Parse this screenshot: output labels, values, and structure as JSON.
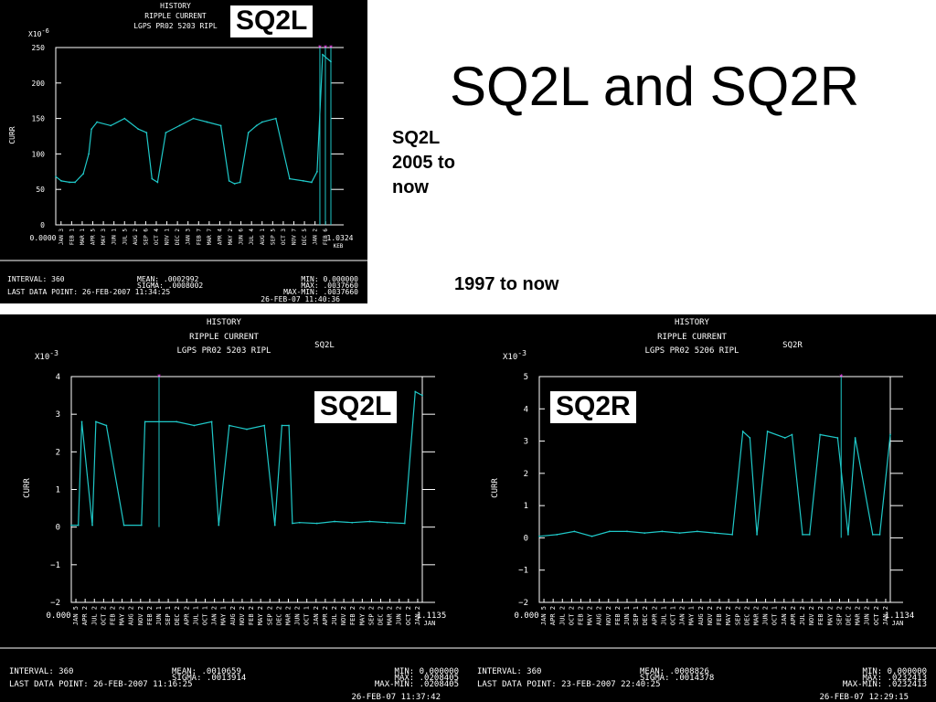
{
  "slide": {
    "title": "SQ2L and SQ2R",
    "note_sq2l_range": "SQ2L\n2005 to\nnow",
    "note_long_range": "1997 to now"
  },
  "colors": {
    "trace": "#1fc8c8",
    "axes": "#ffffff",
    "marker": "#ff44ff",
    "background": "#000000"
  },
  "chart_data": [
    {
      "id": "top",
      "type": "line",
      "overlay_label": "SQ2L",
      "header_lines": [
        "HISTORY",
        "RIPPLE CURRENT",
        "LGPS PR02    5203 RIPL"
      ],
      "right_label": "SQ2L",
      "exponent_base": "X10",
      "exponent": "-6",
      "ylabel": "CURR",
      "ylim": [
        0,
        250
      ],
      "yticks": [
        "0",
        "50",
        "100",
        "150",
        "200",
        "250"
      ],
      "x_start_label": "0.0000",
      "x_end_label": "1.0324",
      "x_end_sub": "KEB",
      "xticks": [
        "JAN 3",
        "FEB 1",
        "MAR 1",
        "APR 5",
        "MAY 3",
        "JUN 1",
        "JUL 5",
        "AUG 2",
        "SEP 6",
        "OCT 4",
        "NOV 1",
        "DEC 2",
        "JAN 3",
        "FEB 7",
        "MAR 7",
        "APR 4",
        "MAY 2",
        "JUN 6",
        "JUL 4",
        "AUG 1",
        "SEP 5",
        "OCT 3",
        "NOV 7",
        "DEC 5",
        "JAN 2",
        "FEB 6"
      ],
      "series_x": [
        0,
        0.02,
        0.05,
        0.07,
        0.1,
        0.12,
        0.13,
        0.15,
        0.2,
        0.25,
        0.3,
        0.33,
        0.35,
        0.37,
        0.4,
        0.45,
        0.5,
        0.55,
        0.6,
        0.63,
        0.65,
        0.67,
        0.7,
        0.73,
        0.75,
        0.8,
        0.85,
        0.9,
        0.93,
        0.95,
        0.97,
        1.0
      ],
      "series_y": [
        68,
        62,
        60,
        60,
        72,
        100,
        135,
        145,
        140,
        150,
        135,
        130,
        65,
        60,
        130,
        140,
        150,
        145,
        140,
        62,
        58,
        60,
        130,
        140,
        145,
        150,
        65,
        62,
        60,
        75,
        240,
        230
      ],
      "marker_positions": [
        0.96,
        0.98,
        1.0
      ],
      "marker_value": 250,
      "interval_text": "INTERVAL:  360",
      "last_point_text": "LAST DATA POINT:  26-FEB-2007 11:34:25",
      "mean_text": "MEAN: .0002992",
      "sigma_text": "SIGMA: .0008002",
      "min_text": "MIN: 0.000000",
      "max_text": "MAX: .0037660",
      "maxmin_text": "MAX-MIN: .0037660",
      "printed_text": "26-FEB-07 11:40:36"
    },
    {
      "id": "bottom-left",
      "type": "line",
      "overlay_label": "SQ2L",
      "header_lines": [
        "HISTORY",
        "RIPPLE CURRENT",
        "LGPS PR02    5203 RIPL"
      ],
      "right_label": "SQ2L",
      "exponent_base": "X10",
      "exponent": "-3",
      "ylabel": "CURR",
      "ylim": [
        -2,
        4
      ],
      "yticks": [
        "−2",
        "−1",
        "0",
        "1",
        "2",
        "3",
        "4"
      ],
      "x_start_label": "0.000",
      "x_end_label": "1.1135",
      "x_end_sub": "JAN",
      "xticks": [
        "JAN 5",
        "APR 2",
        "JUL 2",
        "OCT 2",
        "FEB 2",
        "MAY 2",
        "AUG 2",
        "NOV 2",
        "FEB 2",
        "JUN 1",
        "SEP 1",
        "DEC 2",
        "APR 2",
        "JUL 1",
        "OCT 1",
        "JAN 2",
        "MAY 1",
        "AUG 2",
        "NOV 2",
        "FEB 2",
        "MAY 2",
        "SEP 2",
        "DEC 2",
        "MAR 2",
        "JUN 2",
        "OCT 1",
        "JAN 2",
        "APR 2",
        "JUL 2",
        "NOV 2",
        "FEB 2",
        "MAY 2",
        "SEP 2",
        "DEC 2",
        "MAR 2",
        "JUN 2",
        "OCT 2",
        "JAN 2"
      ],
      "series_x": [
        0,
        0.02,
        0.03,
        0.06,
        0.07,
        0.1,
        0.15,
        0.2,
        0.21,
        0.25,
        0.3,
        0.35,
        0.4,
        0.42,
        0.45,
        0.5,
        0.55,
        0.58,
        0.6,
        0.62,
        0.63,
        0.65,
        0.7,
        0.75,
        0.8,
        0.85,
        0.9,
        0.95,
        0.98,
        1.0
      ],
      "series_y": [
        0.05,
        0.05,
        2.8,
        0.05,
        2.8,
        2.7,
        0.05,
        0.05,
        2.8,
        2.8,
        2.8,
        2.7,
        2.8,
        0.05,
        2.7,
        2.6,
        2.7,
        0.05,
        2.7,
        2.7,
        0.1,
        0.12,
        0.1,
        0.15,
        0.12,
        0.15,
        0.12,
        0.1,
        3.6,
        3.5
      ],
      "marker_positions": [
        0.25
      ],
      "marker_value": 4,
      "interval_text": "INTERVAL:  360",
      "last_point_text": "LAST DATA POINT:  26-FEB-2007 11:16:25",
      "mean_text": "MEAN: .0010659",
      "sigma_text": "SIGMA: .0013914",
      "min_text": "MIN: 0.000000",
      "max_text": "MAX: .0208405",
      "maxmin_text": "MAX-MIN: .0208405",
      "printed_text": "26-FEB-07 11:37:42"
    },
    {
      "id": "bottom-right",
      "type": "line",
      "overlay_label": "SQ2R",
      "header_lines": [
        "HISTORY",
        "RIPPLE CURRENT",
        "LGPS PR02    5206 RIPL"
      ],
      "right_label": "SQ2R",
      "exponent_base": "X10",
      "exponent": "-3",
      "ylabel": "CURR",
      "ylim": [
        -2,
        5
      ],
      "yticks": [
        "−2",
        "−1",
        "0",
        "1",
        "2",
        "3",
        "4",
        "5"
      ],
      "x_start_label": "0.000",
      "x_end_label": "1.1134",
      "x_end_sub": "JAN",
      "xticks": [
        "JAN 5",
        "APR 2",
        "JUL 2",
        "OCT 2",
        "FEB 2",
        "MAY 2",
        "AUG 2",
        "NOV 2",
        "FEB 2",
        "JUN 1",
        "SEP 1",
        "DEC 2",
        "APR 2",
        "JUL 1",
        "OCT 1",
        "JAN 2",
        "MAY 1",
        "AUG 2",
        "NOV 2",
        "FEB 2",
        "MAY 2",
        "SEP 2",
        "DEC 2",
        "MAR 2",
        "JUN 2",
        "OCT 1",
        "JAN 2",
        "APR 2",
        "JUL 2",
        "NOV 2",
        "FEB 2",
        "MAY 2",
        "SEP 2",
        "DEC 2",
        "MAR 2",
        "JUN 2",
        "OCT 2",
        "JAN 2"
      ],
      "series_x": [
        0,
        0.05,
        0.1,
        0.15,
        0.2,
        0.25,
        0.3,
        0.35,
        0.4,
        0.45,
        0.5,
        0.55,
        0.58,
        0.6,
        0.62,
        0.65,
        0.7,
        0.72,
        0.75,
        0.77,
        0.8,
        0.85,
        0.88,
        0.9,
        0.95,
        0.97,
        1.0
      ],
      "series_y": [
        0.05,
        0.1,
        0.2,
        0.05,
        0.2,
        0.2,
        0.15,
        0.2,
        0.15,
        0.2,
        0.15,
        0.1,
        3.3,
        3.1,
        0.1,
        3.3,
        3.1,
        3.2,
        0.1,
        0.1,
        3.2,
        3.1,
        0.1,
        3.1,
        0.1,
        0.1,
        3.2
      ],
      "marker_positions": [
        0.86
      ],
      "marker_value": 5,
      "interval_text": "INTERVAL:  360",
      "last_point_text": "LAST DATA POINT:  23-FEB-2007 22:40:25",
      "mean_text": "MEAN: .0008826",
      "sigma_text": "SIGMA: .0014378",
      "min_text": "MIN: 0.000000",
      "max_text": "MAX: .0232413",
      "maxmin_text": "MAX-MIN: .0232413",
      "printed_text": "26-FEB-07 12:29:15"
    }
  ]
}
